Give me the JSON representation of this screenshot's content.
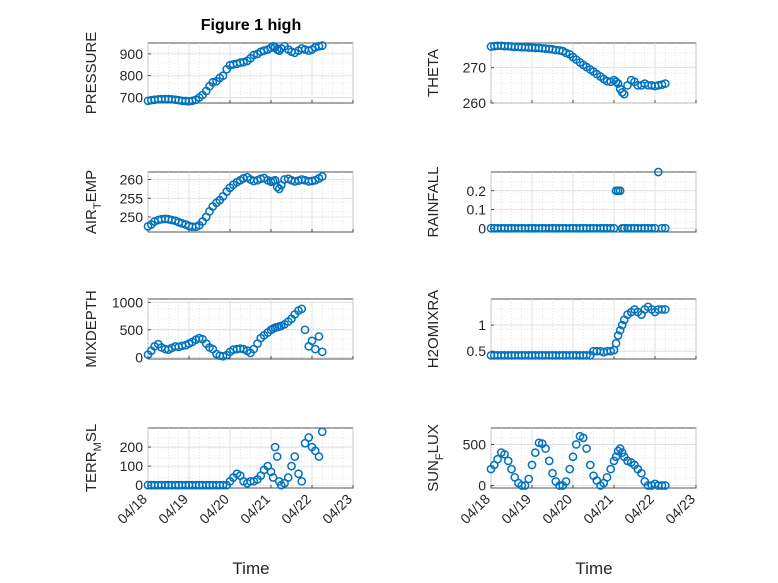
{
  "figure_title": "Figure 1 high",
  "xlabel": "Time",
  "colors": {
    "marker": "#0072BD",
    "grid": "#dcdcdc",
    "axis": "#262626"
  },
  "chart_data": [
    {
      "type": "scatter",
      "ylabel": "PRESSURE",
      "ylabel_sub": "",
      "xlim": [
        0,
        5
      ],
      "ylim": [
        675,
        950
      ],
      "yticks": [
        700,
        800,
        900
      ],
      "ytick_labels": [
        "700",
        "800",
        "900"
      ],
      "x": [
        0.0,
        0.08,
        0.16,
        0.25,
        0.33,
        0.42,
        0.5,
        0.58,
        0.67,
        0.75,
        0.83,
        0.92,
        1.0,
        1.08,
        1.17,
        1.25,
        1.33,
        1.42,
        1.5,
        1.58,
        1.67,
        1.75,
        1.83,
        1.92,
        2.0,
        2.08,
        2.17,
        2.25,
        2.33,
        2.42,
        2.5,
        2.58,
        2.67,
        2.75,
        2.83,
        2.92,
        3.0,
        3.05,
        3.1,
        3.15,
        3.2,
        3.25,
        3.33,
        3.42,
        3.5,
        3.58,
        3.67,
        3.75,
        3.83,
        3.92,
        4.0,
        4.08,
        4.17,
        4.25
      ],
      "y": [
        685,
        688,
        690,
        692,
        693,
        693,
        693,
        692,
        690,
        688,
        685,
        684,
        683,
        685,
        690,
        700,
        712,
        730,
        752,
        770,
        775,
        790,
        800,
        830,
        848,
        852,
        855,
        860,
        862,
        868,
        880,
        895,
        900,
        910,
        915,
        920,
        928,
        935,
        930,
        920,
        915,
        925,
        935,
        920,
        910,
        905,
        915,
        925,
        920,
        915,
        920,
        930,
        935,
        938
      ]
    },
    {
      "type": "scatter",
      "ylabel": "THETA",
      "ylabel_sub": "",
      "xlim": [
        0,
        5
      ],
      "ylim": [
        260,
        277
      ],
      "yticks": [
        260,
        270
      ],
      "ytick_labels": [
        "260",
        "270"
      ],
      "x": [
        0.0,
        0.08,
        0.16,
        0.25,
        0.33,
        0.42,
        0.5,
        0.58,
        0.67,
        0.75,
        0.83,
        0.92,
        1.0,
        1.08,
        1.17,
        1.25,
        1.33,
        1.42,
        1.5,
        1.58,
        1.67,
        1.75,
        1.83,
        1.92,
        2.0,
        2.08,
        2.17,
        2.25,
        2.33,
        2.42,
        2.5,
        2.58,
        2.67,
        2.75,
        2.83,
        2.92,
        3.0,
        3.05,
        3.1,
        3.15,
        3.2,
        3.25,
        3.33,
        3.42,
        3.5,
        3.58,
        3.67,
        3.75,
        3.83,
        3.92,
        4.0,
        4.08,
        4.17,
        4.25
      ],
      "y": [
        276.0,
        276.1,
        276.2,
        276.2,
        276.1,
        276.1,
        276.0,
        275.9,
        275.9,
        275.8,
        275.8,
        275.7,
        275.7,
        275.6,
        275.6,
        275.5,
        275.4,
        275.3,
        275.2,
        275.0,
        274.9,
        274.7,
        274.2,
        273.8,
        273.0,
        272.3,
        271.5,
        270.8,
        270.2,
        269.5,
        268.9,
        268.2,
        267.5,
        266.8,
        266.2,
        266.0,
        266.5,
        266.0,
        265.5,
        264.0,
        263.0,
        262.5,
        265.0,
        266.5,
        266.0,
        265.0,
        265.0,
        265.5,
        265.0,
        265.0,
        264.8,
        265.0,
        265.2,
        265.5
      ]
    },
    {
      "type": "scatter",
      "ylabel": "AIR",
      "ylabel_sub": "T",
      "ylabel_rest": "EMP",
      "xlim": [
        0,
        5
      ],
      "ylim": [
        246,
        262
      ],
      "yticks": [
        250,
        255,
        260
      ],
      "ytick_labels": [
        "250",
        "255",
        "260"
      ],
      "x": [
        0.0,
        0.08,
        0.16,
        0.25,
        0.33,
        0.42,
        0.5,
        0.58,
        0.67,
        0.75,
        0.83,
        0.92,
        1.0,
        1.08,
        1.17,
        1.25,
        1.33,
        1.42,
        1.5,
        1.58,
        1.67,
        1.75,
        1.83,
        1.92,
        2.0,
        2.08,
        2.17,
        2.25,
        2.33,
        2.42,
        2.5,
        2.58,
        2.67,
        2.75,
        2.83,
        2.92,
        3.0,
        3.05,
        3.1,
        3.15,
        3.2,
        3.25,
        3.33,
        3.42,
        3.5,
        3.58,
        3.67,
        3.75,
        3.83,
        3.92,
        4.0,
        4.08,
        4.17,
        4.25
      ],
      "y": [
        247.5,
        248.0,
        248.8,
        249.2,
        249.4,
        249.5,
        249.4,
        249.2,
        249.0,
        248.6,
        248.3,
        248.0,
        247.6,
        247.4,
        247.4,
        247.8,
        248.8,
        250.0,
        251.5,
        252.8,
        253.8,
        254.5,
        255.5,
        256.8,
        257.8,
        258.6,
        259.3,
        259.8,
        260.3,
        260.6,
        260.0,
        259.6,
        259.8,
        260.2,
        260.4,
        259.8,
        259.4,
        259.6,
        259.8,
        258.0,
        257.5,
        258.5,
        260.0,
        260.2,
        259.8,
        259.5,
        259.7,
        260.0,
        259.8,
        259.5,
        259.6,
        259.8,
        260.3,
        260.8
      ]
    },
    {
      "type": "scatter",
      "ylabel": "RAINFALL",
      "ylabel_sub": "",
      "xlim": [
        0,
        5
      ],
      "ylim": [
        -0.02,
        0.3
      ],
      "yticks": [
        0,
        0.1,
        0.2
      ],
      "ytick_labels": [
        "0",
        "0.1",
        "0.2"
      ],
      "x": [
        0.0,
        0.08,
        0.16,
        0.25,
        0.33,
        0.42,
        0.5,
        0.58,
        0.67,
        0.75,
        0.83,
        0.92,
        1.0,
        1.08,
        1.17,
        1.25,
        1.33,
        1.42,
        1.5,
        1.58,
        1.67,
        1.75,
        1.83,
        1.92,
        2.0,
        2.08,
        2.17,
        2.25,
        2.33,
        2.42,
        2.5,
        2.58,
        2.67,
        2.75,
        2.83,
        2.92,
        3.0,
        3.05,
        3.1,
        3.15,
        3.2,
        3.25,
        3.33,
        3.42,
        3.5,
        3.58,
        3.67,
        3.75,
        3.83,
        3.92,
        4.0,
        4.08,
        4.17,
        4.25
      ],
      "y": [
        0,
        0,
        0,
        0,
        0,
        0,
        0,
        0,
        0,
        0,
        0,
        0,
        0,
        0,
        0,
        0,
        0,
        0,
        0,
        0,
        0,
        0,
        0,
        0,
        0,
        0,
        0,
        0,
        0,
        0,
        0,
        0,
        0,
        0,
        0,
        0,
        0,
        0.2,
        0.2,
        0.2,
        0,
        0,
        0,
        0,
        0,
        0,
        0,
        0,
        0,
        0,
        0,
        0.3,
        0,
        0
      ]
    },
    {
      "type": "scatter",
      "ylabel": "MIXDEPTH",
      "ylabel_sub": "",
      "xlim": [
        0,
        5
      ],
      "ylim": [
        -30,
        1060
      ],
      "yticks": [
        0,
        500,
        1000
      ],
      "ytick_labels": [
        "0",
        "500",
        "1000"
      ],
      "x": [
        0.0,
        0.08,
        0.16,
        0.25,
        0.33,
        0.42,
        0.5,
        0.58,
        0.67,
        0.75,
        0.83,
        0.92,
        1.0,
        1.08,
        1.17,
        1.25,
        1.33,
        1.42,
        1.5,
        1.58,
        1.67,
        1.75,
        1.83,
        1.92,
        2.0,
        2.08,
        2.17,
        2.25,
        2.33,
        2.42,
        2.5,
        2.58,
        2.67,
        2.75,
        2.83,
        2.92,
        3.0,
        3.05,
        3.1,
        3.15,
        3.2,
        3.25,
        3.33,
        3.42,
        3.5,
        3.58,
        3.67,
        3.75,
        3.83,
        3.92,
        4.0,
        4.08,
        4.17,
        4.25
      ],
      "y": [
        50,
        120,
        200,
        240,
        180,
        150,
        140,
        170,
        200,
        190,
        210,
        220,
        250,
        280,
        320,
        350,
        330,
        250,
        180,
        150,
        60,
        30,
        20,
        40,
        100,
        140,
        150,
        160,
        150,
        120,
        80,
        150,
        250,
        350,
        400,
        450,
        500,
        520,
        540,
        550,
        560,
        570,
        600,
        650,
        700,
        780,
        850,
        880,
        500,
        200,
        300,
        150,
        380,
        100
      ]
    },
    {
      "type": "scatter",
      "ylabel": "H2OMIXRA",
      "ylabel_sub": "",
      "xlim": [
        0,
        5
      ],
      "ylim": [
        0.35,
        1.5
      ],
      "yticks": [
        0.5,
        1
      ],
      "ytick_labels": [
        "0.5",
        "1"
      ],
      "x": [
        0.0,
        0.08,
        0.16,
        0.25,
        0.33,
        0.42,
        0.5,
        0.58,
        0.67,
        0.75,
        0.83,
        0.92,
        1.0,
        1.08,
        1.17,
        1.25,
        1.33,
        1.42,
        1.5,
        1.58,
        1.67,
        1.75,
        1.83,
        1.92,
        2.0,
        2.08,
        2.17,
        2.25,
        2.33,
        2.42,
        2.5,
        2.58,
        2.67,
        2.75,
        2.83,
        2.92,
        3.0,
        3.05,
        3.1,
        3.15,
        3.2,
        3.25,
        3.33,
        3.42,
        3.5,
        3.58,
        3.67,
        3.75,
        3.83,
        3.92,
        4.0,
        4.08,
        4.17,
        4.25
      ],
      "y": [
        0.42,
        0.42,
        0.42,
        0.42,
        0.42,
        0.42,
        0.42,
        0.42,
        0.42,
        0.42,
        0.42,
        0.42,
        0.42,
        0.42,
        0.42,
        0.42,
        0.42,
        0.42,
        0.42,
        0.42,
        0.42,
        0.42,
        0.42,
        0.42,
        0.42,
        0.42,
        0.42,
        0.42,
        0.42,
        0.42,
        0.5,
        0.5,
        0.5,
        0.48,
        0.5,
        0.5,
        0.52,
        0.65,
        0.8,
        0.9,
        1.0,
        1.1,
        1.2,
        1.25,
        1.3,
        1.25,
        1.2,
        1.3,
        1.35,
        1.3,
        1.25,
        1.3,
        1.3,
        1.3
      ]
    },
    {
      "type": "scatter",
      "ylabel": "TERR",
      "ylabel_sub": "M",
      "ylabel_rest": "SL",
      "xlim": [
        0,
        5
      ],
      "ylim": [
        -15,
        300
      ],
      "yticks": [
        0,
        100,
        200
      ],
      "ytick_labels": [
        "0",
        "100",
        "200"
      ],
      "x": [
        0.0,
        0.08,
        0.16,
        0.25,
        0.33,
        0.42,
        0.5,
        0.58,
        0.67,
        0.75,
        0.83,
        0.92,
        1.0,
        1.08,
        1.17,
        1.25,
        1.33,
        1.42,
        1.5,
        1.58,
        1.67,
        1.75,
        1.83,
        1.92,
        2.0,
        2.08,
        2.17,
        2.25,
        2.33,
        2.42,
        2.5,
        2.58,
        2.67,
        2.75,
        2.83,
        2.92,
        3.0,
        3.05,
        3.1,
        3.15,
        3.2,
        3.25,
        3.33,
        3.42,
        3.5,
        3.58,
        3.67,
        3.75,
        3.83,
        3.92,
        4.0,
        4.08,
        4.17,
        4.25
      ],
      "y": [
        0,
        0,
        0,
        0,
        0,
        0,
        0,
        0,
        0,
        0,
        0,
        0,
        0,
        0,
        0,
        0,
        0,
        0,
        0,
        0,
        0,
        0,
        0,
        0,
        20,
        40,
        60,
        50,
        20,
        10,
        20,
        20,
        30,
        50,
        80,
        100,
        70,
        40,
        200,
        150,
        20,
        0,
        10,
        40,
        100,
        150,
        60,
        20,
        220,
        250,
        200,
        180,
        150,
        280
      ]
    },
    {
      "type": "scatter",
      "ylabel": "SUN",
      "ylabel_sub": "F",
      "ylabel_rest": "LUX",
      "xlim": [
        0,
        5
      ],
      "ylim": [
        -30,
        700
      ],
      "yticks": [
        0,
        500
      ],
      "ytick_labels": [
        "0",
        "500"
      ],
      "x": [
        0.0,
        0.08,
        0.16,
        0.25,
        0.33,
        0.42,
        0.5,
        0.58,
        0.67,
        0.75,
        0.83,
        0.92,
        1.0,
        1.08,
        1.17,
        1.25,
        1.33,
        1.42,
        1.5,
        1.58,
        1.67,
        1.75,
        1.83,
        1.92,
        2.0,
        2.08,
        2.17,
        2.25,
        2.33,
        2.42,
        2.5,
        2.58,
        2.67,
        2.75,
        2.83,
        2.92,
        3.0,
        3.05,
        3.1,
        3.15,
        3.2,
        3.25,
        3.33,
        3.42,
        3.5,
        3.58,
        3.67,
        3.75,
        3.83,
        3.92,
        4.0,
        4.08,
        4.17,
        4.25
      ],
      "y": [
        200,
        250,
        320,
        400,
        380,
        300,
        200,
        100,
        30,
        0,
        0,
        80,
        250,
        400,
        520,
        510,
        450,
        300,
        150,
        50,
        0,
        0,
        50,
        200,
        350,
        500,
        600,
        580,
        450,
        250,
        120,
        60,
        0,
        30,
        100,
        200,
        300,
        350,
        420,
        450,
        400,
        350,
        300,
        280,
        250,
        200,
        150,
        50,
        0,
        0,
        20,
        0,
        0,
        0
      ]
    }
  ],
  "xticks": [
    0,
    1,
    2,
    3,
    4,
    5
  ],
  "xtick_labels": [
    "04/18",
    "04/19",
    "04/20",
    "04/21",
    "04/22",
    "04/23"
  ]
}
